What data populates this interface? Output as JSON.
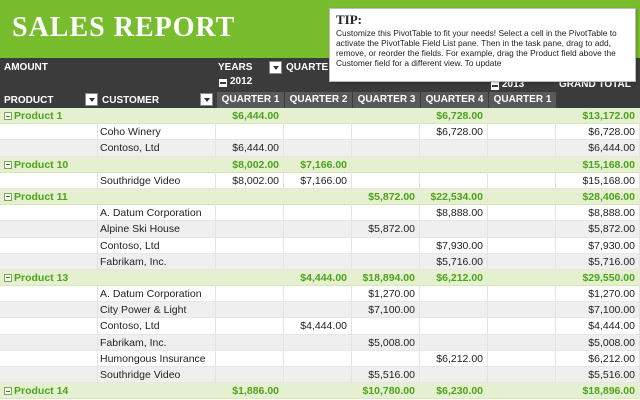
{
  "banner": {
    "title": "SALES REPORT"
  },
  "tip": {
    "title": "TIP:",
    "text": "Customize this PivotTable to fit your needs! Select a cell in the PivotTable to activate the PivotTable Field List pane. Then in the task pane, drag to add, remove, or reorder the fields. For example, drag the Product field above the Customer field for a different view. To update"
  },
  "header": {
    "amount": "AMOUNT",
    "years": "YEARS",
    "quarter_partial": "QUARTE",
    "year_2012": "2012",
    "year_2013": "2013",
    "grand_total": "GRAND TOTAL",
    "product": "PRODUCT",
    "customer": "CUSTOMER",
    "quarters": [
      "QUARTER 1",
      "QUARTER 2",
      "QUARTER 3",
      "QUARTER 4",
      "QUARTER 1"
    ]
  },
  "rows": [
    {
      "type": "product",
      "label": "Product 1",
      "v": [
        "$6,444.00",
        "",
        "",
        "$6,728.00",
        "",
        "$13,172.00"
      ]
    },
    {
      "type": "customer",
      "label": "Coho Winery",
      "v": [
        "",
        "",
        "",
        "$6,728.00",
        "",
        "$6,728.00"
      ]
    },
    {
      "type": "customer",
      "label": "Contoso, Ltd",
      "v": [
        "$6,444.00",
        "",
        "",
        "",
        "",
        "$6,444.00"
      ]
    },
    {
      "type": "product",
      "label": "Product 10",
      "v": [
        "$8,002.00",
        "$7,166.00",
        "",
        "",
        "",
        "$15,168.00"
      ]
    },
    {
      "type": "customer",
      "label": "Southridge Video",
      "v": [
        "$8,002.00",
        "$7,166.00",
        "",
        "",
        "",
        "$15,168.00"
      ]
    },
    {
      "type": "product",
      "label": "Product 11",
      "v": [
        "",
        "",
        "$5,872.00",
        "$22,534.00",
        "",
        "$28,406.00"
      ]
    },
    {
      "type": "customer",
      "label": "A. Datum Corporation",
      "v": [
        "",
        "",
        "",
        "$8,888.00",
        "",
        "$8,888.00"
      ]
    },
    {
      "type": "customer",
      "label": "Alpine Ski House",
      "v": [
        "",
        "",
        "$5,872.00",
        "",
        "",
        "$5,872.00"
      ]
    },
    {
      "type": "customer",
      "label": "Contoso, Ltd",
      "v": [
        "",
        "",
        "",
        "$7,930.00",
        "",
        "$7,930.00"
      ]
    },
    {
      "type": "customer",
      "label": "Fabrikam, Inc.",
      "v": [
        "",
        "",
        "",
        "$5,716.00",
        "",
        "$5,716.00"
      ]
    },
    {
      "type": "product",
      "label": "Product 13",
      "v": [
        "",
        "$4,444.00",
        "$18,894.00",
        "$6,212.00",
        "",
        "$29,550.00"
      ]
    },
    {
      "type": "customer",
      "label": "A. Datum Corporation",
      "v": [
        "",
        "",
        "$1,270.00",
        "",
        "",
        "$1,270.00"
      ]
    },
    {
      "type": "customer",
      "label": "City Power & Light",
      "v": [
        "",
        "",
        "$7,100.00",
        "",
        "",
        "$7,100.00"
      ]
    },
    {
      "type": "customer",
      "label": "Contoso, Ltd",
      "v": [
        "",
        "$4,444.00",
        "",
        "",
        "",
        "$4,444.00"
      ]
    },
    {
      "type": "customer",
      "label": "Fabrikam, Inc.",
      "v": [
        "",
        "",
        "$5,008.00",
        "",
        "",
        "$5,008.00"
      ]
    },
    {
      "type": "customer",
      "label": "Humongous Insurance",
      "v": [
        "",
        "",
        "",
        "$6,212.00",
        "",
        "$6,212.00"
      ]
    },
    {
      "type": "customer",
      "label": "Southridge Video",
      "v": [
        "",
        "",
        "$5,516.00",
        "",
        "",
        "$5,516.00"
      ]
    },
    {
      "type": "product",
      "label": "Product 14",
      "v": [
        "$1,886.00",
        "",
        "$10,780.00",
        "$6,230.00",
        "",
        "$18,896.00"
      ]
    }
  ],
  "colors": {
    "banner": "#77bd2e",
    "header": "#3b3b3b",
    "product_row": "#e4f0cf",
    "product_text": "#4fa21d"
  }
}
